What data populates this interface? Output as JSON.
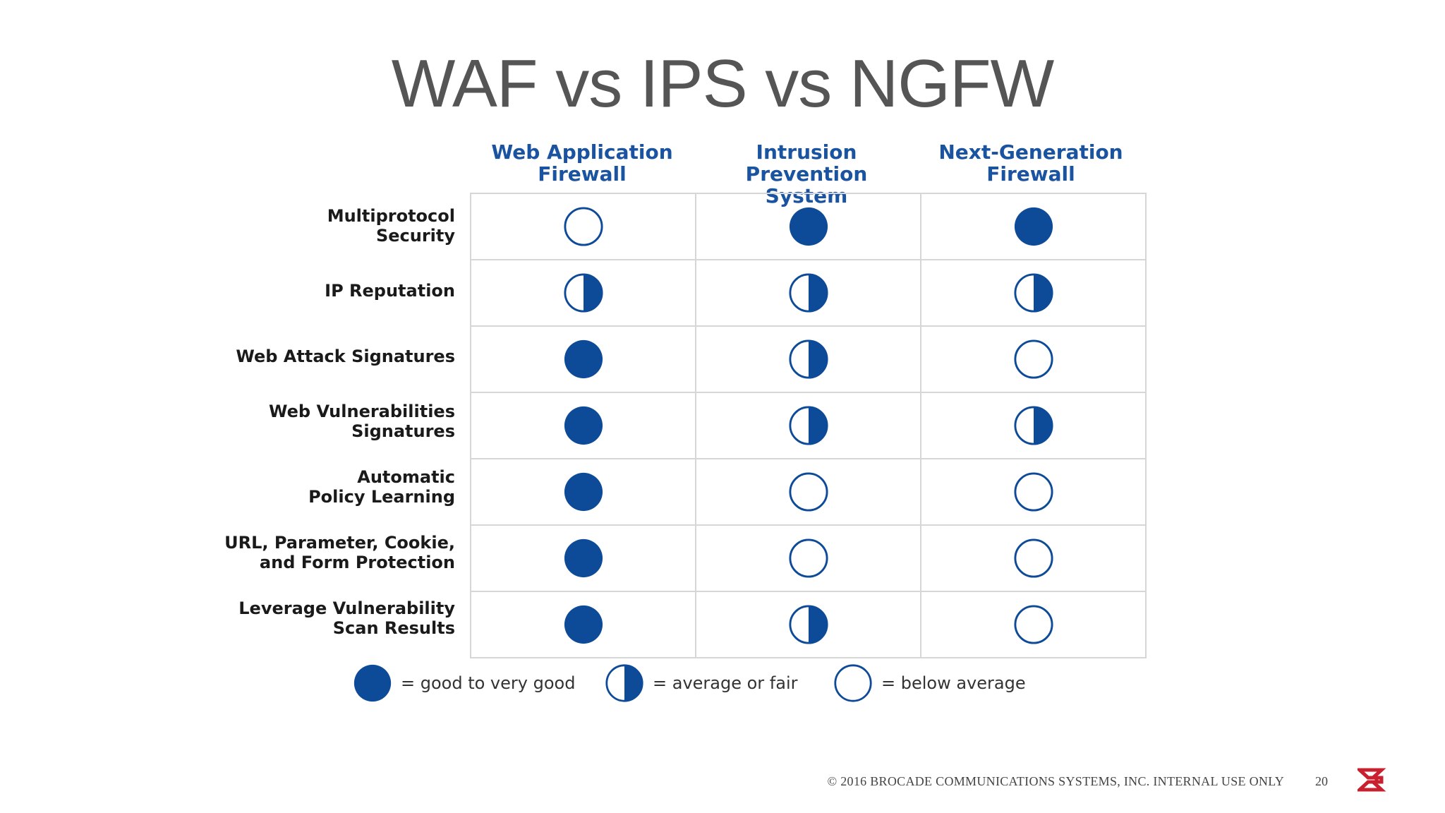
{
  "title": "WAF vs IPS vs NGFW",
  "colors": {
    "accent": "#0d4b99",
    "title": "#555555",
    "header": "#1a53a0",
    "logo": "#c8202f"
  },
  "columns": [
    {
      "line1": "Web Application",
      "line2": "Firewall"
    },
    {
      "line1": "Intrusion Prevention",
      "line2": "System"
    },
    {
      "line1": "Next-Generation",
      "line2": "Firewall"
    }
  ],
  "rows": [
    {
      "line1": "Multiprotocol",
      "line2": "Security",
      "ratings": [
        "empty",
        "full",
        "full"
      ]
    },
    {
      "line1": "IP Reputation",
      "line2": "",
      "ratings": [
        "half",
        "half",
        "half"
      ]
    },
    {
      "line1": "Web Attack Signatures",
      "line2": "",
      "ratings": [
        "full",
        "half",
        "empty"
      ]
    },
    {
      "line1": "Web Vulnerabilities",
      "line2": "Signatures",
      "ratings": [
        "full",
        "half",
        "half"
      ]
    },
    {
      "line1": "Automatic",
      "line2": "Policy Learning",
      "ratings": [
        "full",
        "empty",
        "empty"
      ]
    },
    {
      "line1": "URL, Parameter, Cookie,",
      "line2": "and Form Protection",
      "ratings": [
        "full",
        "empty",
        "empty"
      ]
    },
    {
      "line1": "Leverage Vulnerability",
      "line2": "Scan Results",
      "ratings": [
        "full",
        "half",
        "empty"
      ]
    }
  ],
  "legend": [
    {
      "icon": "full",
      "text": "= good to very good"
    },
    {
      "icon": "half",
      "text": "= average or fair"
    },
    {
      "icon": "empty",
      "text": "= below average"
    }
  ],
  "footer": {
    "copyright": "© 2016 BROCADE COMMUNICATIONS SYSTEMS, INC. INTERNAL USE ONLY",
    "page_number": "20"
  }
}
